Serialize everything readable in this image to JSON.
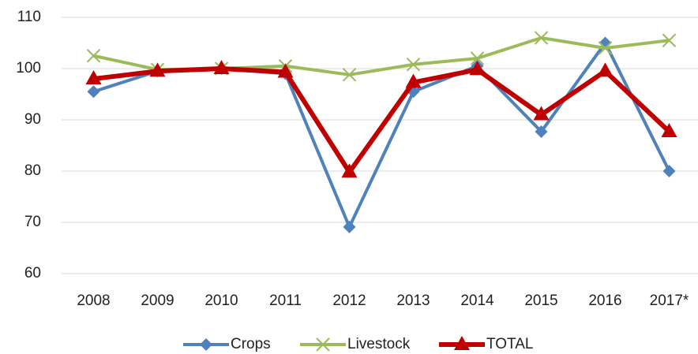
{
  "chart_data": {
    "type": "line",
    "categories": [
      "2008",
      "2009",
      "2010",
      "2011",
      "2012",
      "2013",
      "2014",
      "2015",
      "2016",
      "2017*"
    ],
    "series": [
      {
        "name": "Crops",
        "color": "#4f81bd",
        "marker": "diamond",
        "values": [
          95.5,
          99.5,
          100,
          99,
          69.1,
          95.5,
          100.5,
          87.7,
          105,
          80
        ]
      },
      {
        "name": "Livestock",
        "color": "#9bbb59",
        "marker": "x",
        "values": [
          102.5,
          99.8,
          100,
          100.5,
          98.8,
          100.8,
          102,
          106,
          104,
          105.5
        ]
      },
      {
        "name": "TOTAL",
        "color": "#c00000",
        "marker": "triangle",
        "values": [
          98,
          99.5,
          100,
          99.3,
          79.8,
          97.3,
          99.8,
          91,
          99.5,
          87.7
        ]
      }
    ],
    "ylim": [
      60,
      110
    ],
    "yticks": [
      60,
      70,
      80,
      90,
      100,
      110
    ],
    "grid": true,
    "legend": "bottom"
  }
}
